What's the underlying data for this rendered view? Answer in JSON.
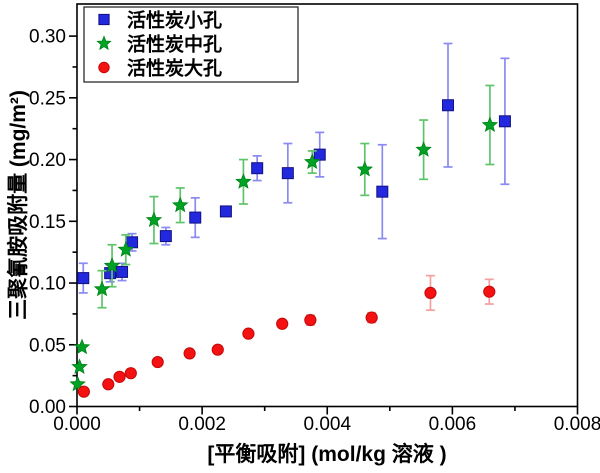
{
  "figure": {
    "background": "#ffffff",
    "frame_color": "#000000"
  },
  "chart_data": {
    "type": "scatter",
    "title": "",
    "xlabel": "[平衡吸附] (mol/kg 溶液 )",
    "ylabel": "三聚氰胺吸附量 (mg/m²)",
    "xlim": [
      0,
      0.008
    ],
    "ylim": [
      0,
      0.326
    ],
    "grid": false,
    "legend_position": "top-left",
    "x_ticks": [
      {
        "v": 0.0,
        "label": "0.000"
      },
      {
        "v": 0.002,
        "label": "0.002"
      },
      {
        "v": 0.004,
        "label": "0.004"
      },
      {
        "v": 0.006,
        "label": "0.006"
      },
      {
        "v": 0.008,
        "label": "0.008"
      }
    ],
    "y_ticks": [
      {
        "v": 0.0,
        "label": "0.00"
      },
      {
        "v": 0.05,
        "label": "0.05"
      },
      {
        "v": 0.1,
        "label": "0.10"
      },
      {
        "v": 0.15,
        "label": "0.15"
      },
      {
        "v": 0.2,
        "label": "0.20"
      },
      {
        "v": 0.25,
        "label": "0.25"
      },
      {
        "v": 0.3,
        "label": "0.30"
      }
    ],
    "series": [
      {
        "name": "活性炭小孔",
        "id": "small-pore",
        "marker": "square",
        "color": "#2228dd",
        "stroke": "#12127f",
        "errorbar_color": "#8a8af2",
        "points": [
          [
            0.0001,
            0.104,
            0.012
          ],
          [
            0.00053,
            0.108,
            0.007
          ],
          [
            0.00072,
            0.109,
            0.007
          ],
          [
            0.00088,
            0.133,
            0.007
          ],
          [
            0.00142,
            0.138,
            0.007
          ],
          [
            0.00189,
            0.153,
            0.016
          ],
          [
            0.00238,
            0.158,
            0
          ],
          [
            0.00288,
            0.193,
            0.01
          ],
          [
            0.00337,
            0.189,
            0.024
          ],
          [
            0.00388,
            0.204,
            0.018
          ],
          [
            0.00488,
            0.174,
            0.038
          ],
          [
            0.00593,
            0.244,
            0.05
          ],
          [
            0.00684,
            0.231,
            0.051
          ]
        ]
      },
      {
        "name": "活性炭中孔",
        "id": "mid-pore",
        "marker": "star",
        "color": "#00a226",
        "stroke": "#008216",
        "errorbar_color": "#5ec46a",
        "points": [
          [
            1e-05,
            0.018,
            0
          ],
          [
            4e-05,
            0.032,
            0
          ],
          [
            8e-05,
            0.048,
            0
          ],
          [
            0.0004,
            0.095,
            0.015
          ],
          [
            0.00056,
            0.114,
            0.017
          ],
          [
            0.00078,
            0.127,
            0.012
          ],
          [
            0.00123,
            0.151,
            0.019
          ],
          [
            0.00165,
            0.163,
            0.014
          ],
          [
            0.00266,
            0.182,
            0.018
          ],
          [
            0.00376,
            0.198,
            0.009
          ],
          [
            0.0046,
            0.192,
            0.021
          ],
          [
            0.00554,
            0.208,
            0.024
          ],
          [
            0.0066,
            0.228,
            0.032
          ]
        ]
      },
      {
        "name": "活性炭大孔",
        "id": "large-pore",
        "marker": "circle",
        "color": "#f31111",
        "stroke": "#c40808",
        "errorbar_color": "#f59f9f",
        "points": [
          [
            0.00011,
            0.012,
            0
          ],
          [
            0.0005,
            0.018,
            0
          ],
          [
            0.00068,
            0.024,
            0
          ],
          [
            0.00086,
            0.027,
            0
          ],
          [
            0.00129,
            0.036,
            0
          ],
          [
            0.0018,
            0.043,
            0
          ],
          [
            0.00225,
            0.046,
            0
          ],
          [
            0.00274,
            0.059,
            0
          ],
          [
            0.00328,
            0.067,
            0
          ],
          [
            0.00373,
            0.07,
            0.004
          ],
          [
            0.00471,
            0.072,
            0.004
          ],
          [
            0.00565,
            0.092,
            0.014
          ],
          [
            0.00659,
            0.093,
            0.01
          ]
        ]
      }
    ]
  }
}
